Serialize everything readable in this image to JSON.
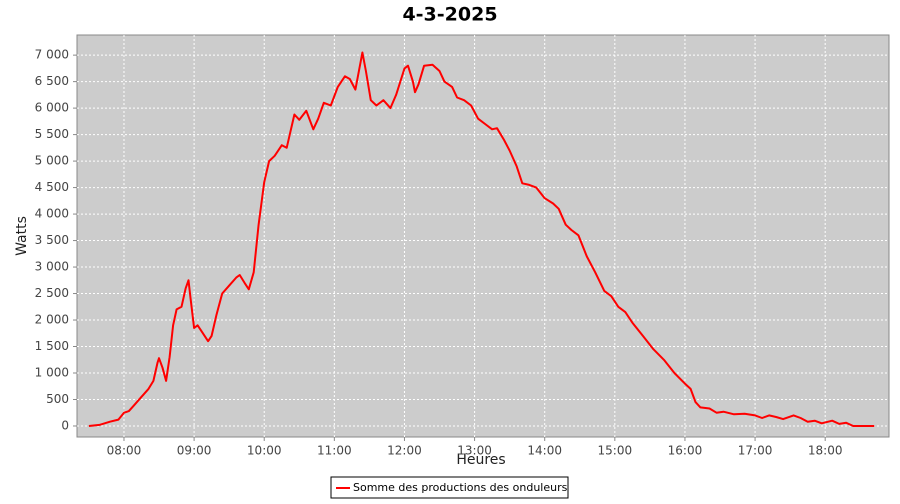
{
  "chart_data": {
    "type": "line",
    "title": "4-3-2025",
    "x_label": "Heures",
    "y_label": "Watts",
    "x": [
      7.5,
      7.65,
      7.8,
      7.92,
      8.0,
      8.07,
      8.15,
      8.25,
      8.35,
      8.42,
      8.48,
      8.5,
      8.55,
      8.6,
      8.65,
      8.7,
      8.75,
      8.82,
      8.88,
      8.92,
      8.95,
      9.0,
      9.05,
      9.1,
      9.2,
      9.25,
      9.32,
      9.4,
      9.5,
      9.6,
      9.65,
      9.72,
      9.78,
      9.85,
      9.92,
      10.0,
      10.07,
      10.15,
      10.25,
      10.32,
      10.43,
      10.5,
      10.6,
      10.7,
      10.77,
      10.85,
      10.95,
      11.05,
      11.15,
      11.22,
      11.3,
      11.4,
      11.45,
      11.52,
      11.6,
      11.7,
      11.8,
      11.88,
      12.0,
      12.05,
      12.12,
      12.15,
      12.2,
      12.28,
      12.4,
      12.5,
      12.57,
      12.68,
      12.75,
      12.85,
      12.95,
      13.05,
      13.15,
      13.25,
      13.32,
      13.42,
      13.5,
      13.6,
      13.68,
      13.78,
      13.88,
      14.0,
      14.12,
      14.2,
      14.3,
      14.38,
      14.48,
      14.6,
      14.72,
      14.85,
      14.95,
      15.05,
      15.15,
      15.25,
      15.4,
      15.55,
      15.7,
      15.85,
      16.0,
      16.08,
      16.15,
      16.22,
      16.35,
      16.45,
      16.55,
      16.7,
      16.85,
      17.0,
      17.1,
      17.2,
      17.3,
      17.4,
      17.55,
      17.65,
      17.75,
      17.85,
      17.95,
      18.1,
      18.2,
      18.3,
      18.4,
      18.7
    ],
    "series": [
      {
        "name": "Somme des productions des onduleurs",
        "color": "#ff0000",
        "values": [
          0,
          20,
          80,
          120,
          250,
          280,
          400,
          550,
          700,
          850,
          1200,
          1280,
          1100,
          850,
          1300,
          1900,
          2200,
          2250,
          2600,
          2750,
          2400,
          1850,
          1900,
          1800,
          1600,
          1700,
          2100,
          2500,
          2650,
          2800,
          2850,
          2700,
          2580,
          2900,
          3800,
          4600,
          5000,
          5100,
          5300,
          5250,
          5880,
          5780,
          5950,
          5600,
          5800,
          6100,
          6050,
          6400,
          6600,
          6550,
          6350,
          7050,
          6700,
          6150,
          6050,
          6150,
          6000,
          6250,
          6750,
          6800,
          6500,
          6300,
          6450,
          6800,
          6820,
          6700,
          6500,
          6400,
          6200,
          6150,
          6050,
          5800,
          5700,
          5600,
          5620,
          5400,
          5200,
          4900,
          4580,
          4550,
          4500,
          4300,
          4200,
          4100,
          3800,
          3700,
          3600,
          3200,
          2900,
          2550,
          2450,
          2250,
          2150,
          1950,
          1700,
          1450,
          1250,
          1000,
          800,
          700,
          450,
          350,
          330,
          250,
          270,
          220,
          230,
          200,
          150,
          200,
          170,
          130,
          200,
          150,
          80,
          100,
          50,
          100,
          40,
          60,
          0,
          0
        ]
      }
    ],
    "xlim": [
      7.33,
      18.91
    ],
    "xticks": [
      {
        "value": 8,
        "label": "08:00"
      },
      {
        "value": 9,
        "label": "09:00"
      },
      {
        "value": 10,
        "label": "10:00"
      },
      {
        "value": 11,
        "label": "11:00"
      },
      {
        "value": 12,
        "label": "12:00"
      },
      {
        "value": 13,
        "label": "13:00"
      },
      {
        "value": 14,
        "label": "14:00"
      },
      {
        "value": 15,
        "label": "15:00"
      },
      {
        "value": 16,
        "label": "16:00"
      },
      {
        "value": 17,
        "label": "17:00"
      },
      {
        "value": 18,
        "label": "18:00"
      }
    ],
    "ylim": [
      -208,
      7380
    ],
    "yticks": [
      0,
      500,
      {
        "value": 1000,
        "label": "1 000"
      },
      {
        "value": 1500,
        "label": "1 500"
      },
      {
        "value": 2000,
        "label": "2 000"
      },
      {
        "value": 2500,
        "label": "2 500"
      },
      {
        "value": 3000,
        "label": "3 000"
      },
      {
        "value": 3500,
        "label": "3 500"
      },
      {
        "value": 4000,
        "label": "4 000"
      },
      {
        "value": 4500,
        "label": "4 500"
      },
      {
        "value": 5000,
        "label": "5 000"
      },
      {
        "value": 5500,
        "label": "5 500"
      },
      {
        "value": 6000,
        "label": "6 000"
      },
      {
        "value": 6500,
        "label": "6 500"
      },
      {
        "value": 7000,
        "label": "7 000"
      }
    ],
    "grid": true
  }
}
